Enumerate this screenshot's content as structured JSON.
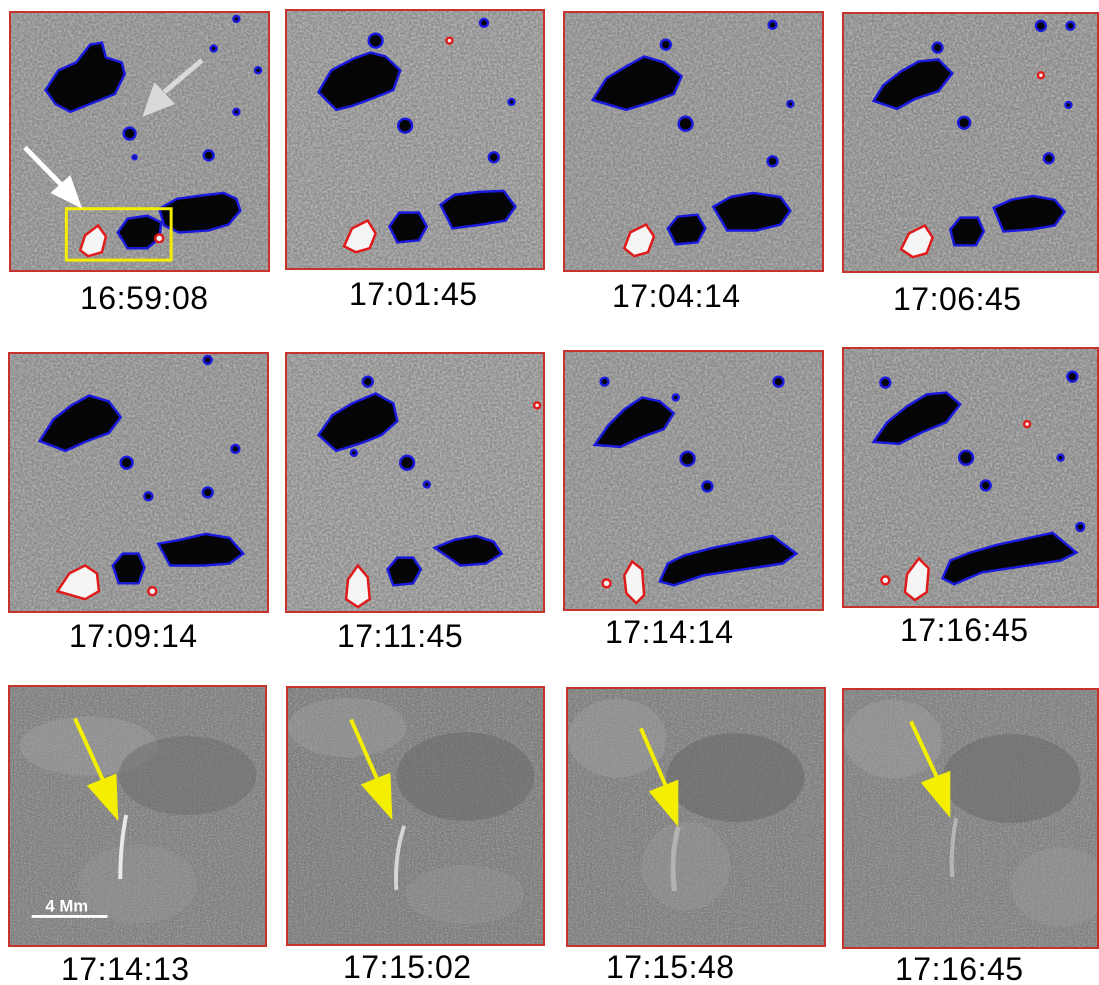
{
  "figure": {
    "rows": [
      {
        "kind": "magnetogram",
        "panels": [
          {
            "time": "16:59:08"
          },
          {
            "time": "17:01:45"
          },
          {
            "time": "17:04:14"
          },
          {
            "time": "17:06:45"
          }
        ]
      },
      {
        "kind": "magnetogram",
        "panels": [
          {
            "time": "17:09:14"
          },
          {
            "time": "17:11:45"
          },
          {
            "time": "17:14:14"
          },
          {
            "time": "17:16:45"
          }
        ]
      },
      {
        "kind": "intensity",
        "panels": [
          {
            "time": "17:14:13"
          },
          {
            "time": "17:15:02"
          },
          {
            "time": "17:15:48"
          },
          {
            "time": "17:16:45"
          }
        ]
      }
    ],
    "scale_bar": {
      "label": "4 Mm"
    },
    "colors": {
      "panel_border": "#c8322d",
      "negative_contour": "#1a1adf",
      "positive_contour": "#e01a1a",
      "highlight_box": "#f4ef00",
      "arrow_yellow": "#f4ef00",
      "arrow_white": "#ffffff",
      "arrow_gray": "#d9d9d9"
    },
    "icons": [
      "white-arrow-icon",
      "gray-arrow-icon",
      "yellow-arrow-icon",
      "highlight-box"
    ]
  }
}
